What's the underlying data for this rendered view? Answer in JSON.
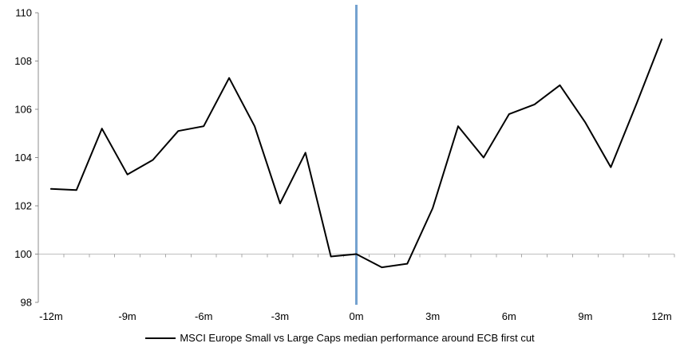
{
  "chart_data": {
    "type": "line",
    "title": "",
    "legend_position": "bottom-center",
    "x_unit": "months relative to ECB first cut",
    "x": [
      -12,
      -11,
      -10,
      -9,
      -8,
      -7,
      -6,
      -5,
      -4,
      -3,
      -2,
      -1,
      0,
      1,
      2,
      3,
      4,
      5,
      6,
      7,
      8,
      9,
      10,
      11,
      12
    ],
    "series": [
      {
        "name": "MSCI Europe Small vs Large Caps median performance around ECB first cut",
        "color": "#000000",
        "values": [
          102.7,
          102.65,
          105.2,
          103.3,
          103.9,
          105.1,
          105.3,
          107.3,
          105.3,
          102.1,
          104.2,
          99.9,
          100.0,
          99.45,
          99.6,
          101.9,
          105.3,
          104.0,
          105.8,
          106.2,
          107.0,
          105.45,
          103.6,
          106.2,
          108.9
        ]
      }
    ],
    "ylim": [
      98,
      110
    ],
    "y_ticks": [
      98,
      100,
      102,
      104,
      106,
      108,
      110
    ],
    "y_tick_labels": [
      "98",
      "100",
      "102",
      "104",
      "106",
      "108",
      "110"
    ],
    "x_tick_positions": [
      -12,
      -9,
      -6,
      -3,
      0,
      3,
      6,
      9,
      12
    ],
    "x_tick_labels": [
      "-12m",
      "-9m",
      "-6m",
      "-3m",
      "0m",
      "3m",
      "6m",
      "9m",
      "12m"
    ],
    "baseline_value": 100,
    "event_line_x": 0,
    "grid": "baseline-only",
    "colors": {
      "series_line": "#000000",
      "event_line": "#74A2D0",
      "value_axis": "#8c8c8c",
      "baseline": "#bfbfbf",
      "baseline_ticks": "#a8a8a8",
      "label_text": "#000000",
      "background": "#ffffff"
    }
  }
}
